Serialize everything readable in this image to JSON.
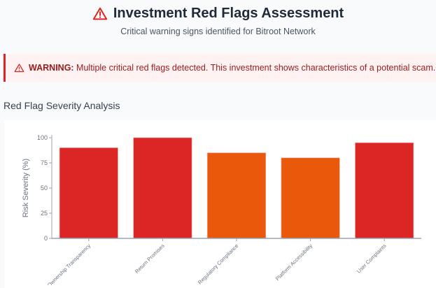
{
  "header": {
    "title": "Investment Red Flags Assessment",
    "subtitle": "Critical warning signs identified for Bitroot Network",
    "icon": "warning-triangle-icon"
  },
  "warning": {
    "label": "WARNING:",
    "message": " Multiple critical red flags detected. This investment shows characteristics of a potential scam.",
    "icon": "warning-triangle-icon"
  },
  "section_title": "Red Flag Severity Analysis",
  "chart_data": {
    "type": "bar",
    "title": "Red Flag Severity Analysis",
    "categories": [
      "Ownership Transparency",
      "Return Promises",
      "Regulatory Compliance",
      "Platform Accessibility",
      "User Complaints"
    ],
    "values": [
      90,
      100,
      85,
      80,
      95
    ],
    "colors": [
      "#dc2626",
      "#dc2626",
      "#ea580c",
      "#ea580c",
      "#dc2626"
    ],
    "xlabel": "",
    "ylabel": "Risk Severity (%)",
    "ylim": [
      0,
      100
    ],
    "yticks": [
      0,
      25,
      50,
      75,
      100
    ],
    "grid": false
  }
}
